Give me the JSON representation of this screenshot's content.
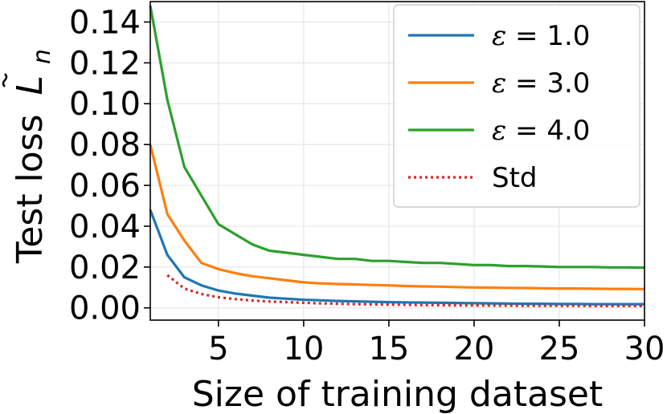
{
  "chart_data": {
    "type": "line",
    "xlabel": "Size of training dataset",
    "ylabel": "Test loss",
    "ylabel_symbol": "L",
    "ylabel_subscript": "n",
    "xlim": [
      1,
      30
    ],
    "ylim": [
      -0.006,
      0.15
    ],
    "xticks": [
      5,
      10,
      15,
      20,
      25,
      30
    ],
    "yticks": [
      0.0,
      0.02,
      0.04,
      0.06,
      0.08,
      0.1,
      0.12,
      0.14
    ],
    "xtick_labels": [
      "5",
      "10",
      "15",
      "20",
      "25",
      "30"
    ],
    "ytick_labels": [
      "0.00",
      "0.02",
      "0.04",
      "0.06",
      "0.08",
      "0.10",
      "0.12",
      "0.14"
    ],
    "grid": true,
    "legend_position": "top-right",
    "series": [
      {
        "name": "ε =  1.0",
        "legend_symbol": "ε",
        "legend_value": "=  1.0",
        "color": "#1f77b4",
        "style": "solid",
        "x": [
          1,
          2,
          3,
          4,
          5,
          6,
          7,
          8,
          9,
          10,
          11,
          12,
          13,
          14,
          15,
          16,
          17,
          18,
          19,
          20,
          21,
          22,
          23,
          24,
          25,
          26,
          27,
          28,
          29,
          30
        ],
        "y": [
          0.048,
          0.026,
          0.015,
          0.011,
          0.0085,
          0.007,
          0.006,
          0.005,
          0.0045,
          0.004,
          0.0037,
          0.0034,
          0.0032,
          0.003,
          0.0028,
          0.0027,
          0.0026,
          0.0025,
          0.0024,
          0.0023,
          0.0022,
          0.0021,
          0.002,
          0.002,
          0.0019,
          0.0019,
          0.0018,
          0.0018,
          0.0018,
          0.0018
        ]
      },
      {
        "name": "ε =  3.0",
        "legend_symbol": "ε",
        "legend_value": "=  3.0",
        "color": "#ff7f0e",
        "style": "solid",
        "x": [
          1,
          2,
          3,
          4,
          5,
          6,
          7,
          8,
          9,
          10,
          11,
          12,
          13,
          14,
          15,
          16,
          17,
          18,
          19,
          20,
          21,
          22,
          23,
          24,
          25,
          26,
          27,
          28,
          29,
          30
        ],
        "y": [
          0.08,
          0.046,
          0.033,
          0.022,
          0.019,
          0.017,
          0.0155,
          0.0145,
          0.0135,
          0.0125,
          0.012,
          0.0117,
          0.0115,
          0.0112,
          0.011,
          0.0107,
          0.0105,
          0.0104,
          0.0102,
          0.01,
          0.0099,
          0.0098,
          0.0097,
          0.0096,
          0.0095,
          0.0095,
          0.0094,
          0.0093,
          0.0093,
          0.0092
        ]
      },
      {
        "name": "ε =  4.0",
        "legend_symbol": "ε",
        "legend_value": "=  4.0",
        "color": "#2ca02c",
        "style": "solid",
        "x": [
          1,
          2,
          3,
          4,
          5,
          6,
          7,
          8,
          9,
          10,
          11,
          12,
          13,
          14,
          15,
          16,
          17,
          18,
          19,
          20,
          21,
          22,
          23,
          24,
          25,
          26,
          27,
          28,
          29,
          30
        ],
        "y": [
          0.148,
          0.102,
          0.069,
          0.055,
          0.041,
          0.036,
          0.031,
          0.028,
          0.027,
          0.026,
          0.025,
          0.024,
          0.024,
          0.023,
          0.023,
          0.0225,
          0.022,
          0.022,
          0.0215,
          0.021,
          0.021,
          0.0205,
          0.0205,
          0.0203,
          0.02,
          0.02,
          0.02,
          0.0198,
          0.0198,
          0.0197
        ]
      },
      {
        "name": "Std",
        "color": "#d62728",
        "style": "dotted",
        "x": [
          2,
          3,
          4,
          5,
          6,
          7,
          8,
          9,
          10,
          11,
          12,
          13,
          14,
          15,
          16,
          17,
          18,
          19,
          20,
          21,
          22,
          23,
          24,
          25,
          26,
          27,
          28,
          29,
          30
        ],
        "y": [
          0.016,
          0.0095,
          0.0068,
          0.0052,
          0.0043,
          0.0036,
          0.0031,
          0.0028,
          0.0025,
          0.0022,
          0.002,
          0.0018,
          0.0017,
          0.0016,
          0.0015,
          0.0014,
          0.0013,
          0.0012,
          0.0012,
          0.0011,
          0.0011,
          0.001,
          0.001,
          0.001,
          0.001,
          0.0009,
          0.0009,
          0.0009,
          0.0009
        ]
      }
    ]
  }
}
